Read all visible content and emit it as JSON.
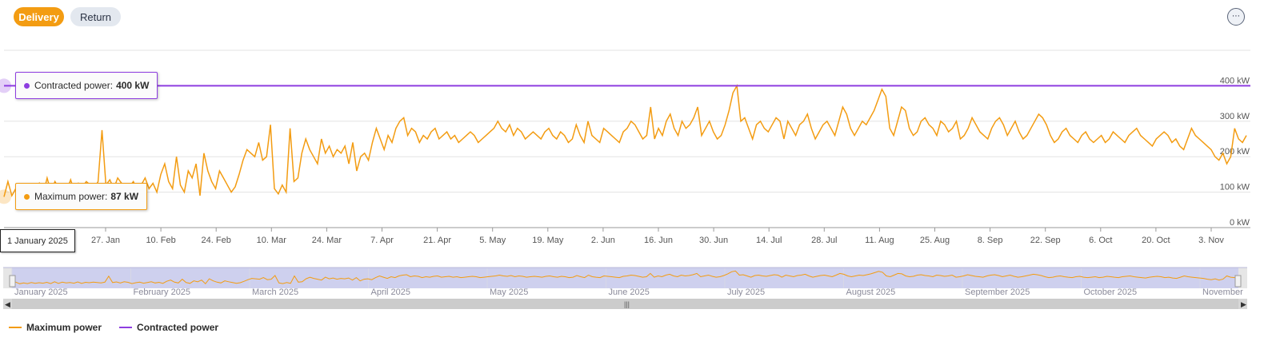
{
  "toolbar": {
    "delivery_label": "Delivery",
    "return_label": "Return",
    "more_icon": "ellipsis-icon"
  },
  "tooltips": {
    "contracted": {
      "label": "Contracted power:",
      "value": "400 kW"
    },
    "maximum": {
      "label": "Maximum power:",
      "value": "87 kW"
    },
    "date": "1 January 2025"
  },
  "legend": {
    "max_label": "Maximum power",
    "contracted_label": "Contracted power"
  },
  "colors": {
    "max": "#f39c12",
    "contracted": "#8e3ee0",
    "navigator_fill": "#c9cbef"
  },
  "chart_data": {
    "type": "line",
    "x_start": "2025-01-01",
    "x_end": "2025-11-10",
    "x_tick_labels": [
      "27. Jan",
      "10. Feb",
      "24. Feb",
      "10. Mar",
      "24. Mar",
      "7. Apr",
      "21. Apr",
      "5. May",
      "19. May",
      "2. Jun",
      "16. Jun",
      "30. Jun",
      "14. Jul",
      "28. Jul",
      "11. Aug",
      "25. Aug",
      "8. Sep",
      "22. Sep",
      "6. Oct",
      "20. Oct",
      "3. Nov"
    ],
    "y_tick_labels": [
      "0 kW",
      "100 kW",
      "200 kW",
      "300 kW",
      "400 kW"
    ],
    "ylim": [
      0,
      500
    ],
    "navigator_labels": [
      "January 2025",
      "February 2025",
      "March 2025",
      "April 2025",
      "May 2025",
      "June 2025",
      "July 2025",
      "August 2025",
      "September 2025",
      "October 2025",
      "November"
    ],
    "series": [
      {
        "name": "Contracted power",
        "values": [
          400
        ]
      },
      {
        "name": "Maximum power",
        "values": [
          87,
          130,
          90,
          110,
          95,
          120,
          100,
          115,
          105,
          125,
          95,
          140,
          100,
          130,
          110,
          120,
          105,
          135,
          100,
          125,
          115,
          130,
          120,
          110,
          130,
          275,
          120,
          135,
          110,
          140,
          125,
          95,
          115,
          130,
          105,
          120,
          140,
          110,
          125,
          100,
          150,
          180,
          130,
          110,
          200,
          120,
          100,
          160,
          140,
          180,
          90,
          210,
          160,
          130,
          110,
          160,
          140,
          120,
          100,
          115,
          150,
          190,
          220,
          210,
          200,
          240,
          190,
          200,
          290,
          110,
          95,
          120,
          100,
          280,
          130,
          140,
          210,
          250,
          220,
          200,
          180,
          250,
          210,
          230,
          200,
          220,
          210,
          230,
          180,
          240,
          160,
          200,
          210,
          190,
          240,
          280,
          250,
          220,
          260,
          240,
          280,
          300,
          310,
          260,
          280,
          270,
          240,
          260,
          250,
          270,
          280,
          250,
          260,
          270,
          250,
          260,
          240,
          250,
          260,
          270,
          260,
          240,
          250,
          260,
          270,
          280,
          300,
          280,
          270,
          290,
          260,
          280,
          270,
          250,
          260,
          270,
          260,
          250,
          270,
          280,
          260,
          250,
          270,
          260,
          240,
          250,
          290,
          260,
          240,
          300,
          260,
          250,
          240,
          280,
          270,
          260,
          250,
          240,
          270,
          280,
          300,
          290,
          270,
          250,
          260,
          340,
          250,
          280,
          260,
          300,
          320,
          280,
          260,
          300,
          280,
          290,
          310,
          340,
          260,
          280,
          300,
          270,
          250,
          260,
          290,
          330,
          380,
          400,
          300,
          310,
          280,
          250,
          290,
          300,
          280,
          270,
          290,
          310,
          300,
          250,
          300,
          280,
          260,
          290,
          300,
          320,
          280,
          250,
          270,
          290,
          300,
          280,
          260,
          300,
          340,
          320,
          280,
          260,
          280,
          300,
          290,
          310,
          330,
          360,
          390,
          370,
          280,
          260,
          300,
          340,
          330,
          280,
          260,
          270,
          300,
          310,
          290,
          280,
          260,
          300,
          290,
          270,
          280,
          300,
          250,
          260,
          280,
          310,
          290,
          270,
          260,
          250,
          280,
          300,
          310,
          290,
          260,
          280,
          300,
          270,
          250,
          260,
          280,
          300,
          320,
          310,
          290,
          260,
          240,
          250,
          270,
          280,
          260,
          250,
          240,
          260,
          270,
          250,
          240,
          250,
          260,
          240,
          250,
          270,
          260,
          250,
          240,
          260,
          270,
          280,
          260,
          250,
          240,
          230,
          250,
          260,
          270,
          260,
          240,
          250,
          230,
          220,
          250,
          280,
          260,
          250,
          240,
          230,
          220,
          200,
          190,
          210,
          180,
          200,
          280,
          250,
          240,
          260
        ]
      }
    ]
  }
}
